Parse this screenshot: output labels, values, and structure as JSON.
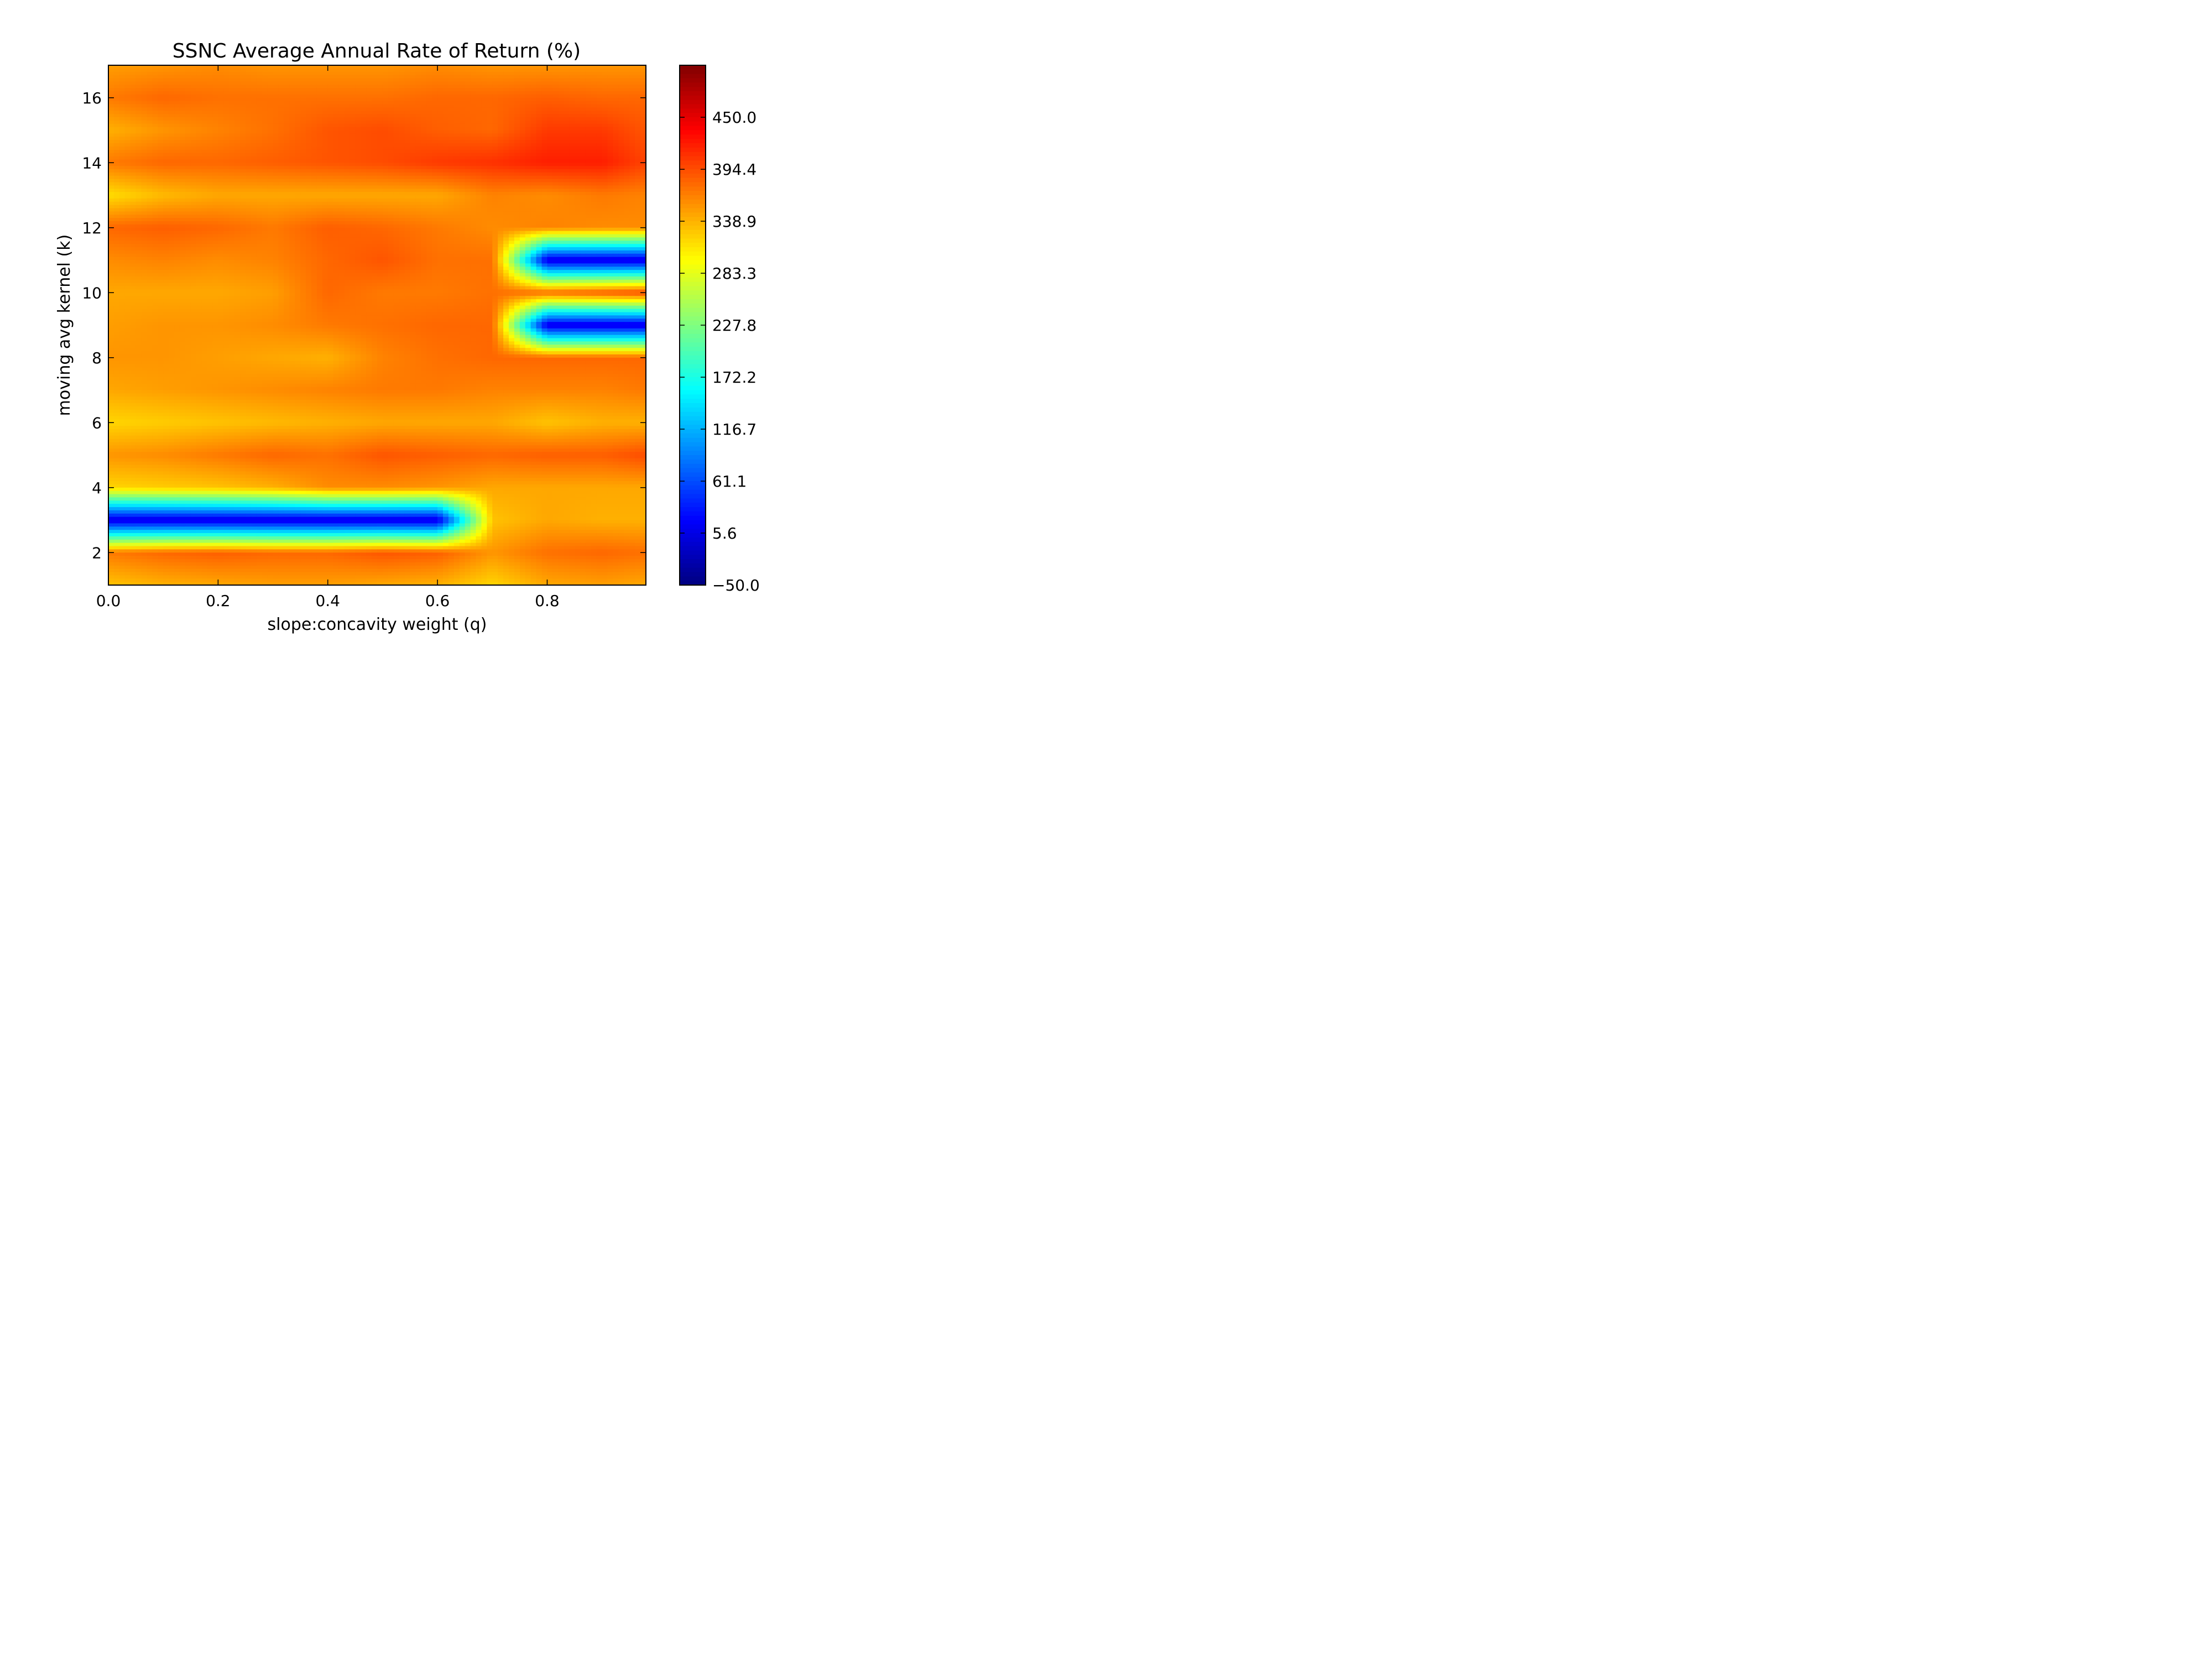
{
  "chart_data": {
    "type": "heatmap",
    "title": "SSNC Average Annual Rate of Return (%)",
    "xlabel": "slope:concavity weight (q)",
    "ylabel": "moving avg kernel (k)",
    "xlim": [
      0.0,
      0.98
    ],
    "ylim": [
      1,
      17
    ],
    "x_ticks": [
      0.0,
      0.2,
      0.4,
      0.6,
      0.8
    ],
    "x_tick_labels": [
      "0.0",
      "0.2",
      "0.4",
      "0.6",
      "0.8"
    ],
    "y_ticks": [
      2,
      4,
      6,
      8,
      10,
      12,
      14,
      16
    ],
    "y_tick_labels": [
      "2",
      "4",
      "6",
      "8",
      "10",
      "12",
      "14",
      "16"
    ],
    "colormap": "jet",
    "colorbar": {
      "vmin": -50.0,
      "vmax": 505.6,
      "ticks": [
        -50.0,
        5.6,
        61.1,
        116.7,
        172.2,
        227.8,
        283.3,
        338.9,
        394.4,
        450.0
      ],
      "tick_labels": [
        "−50.0",
        "5.6",
        "61.1",
        "116.7",
        "172.2",
        "227.8",
        "283.3",
        "338.9",
        "394.4",
        "450.0"
      ]
    },
    "x": [
      0.0,
      0.1,
      0.2,
      0.3,
      0.4,
      0.5,
      0.6,
      0.7,
      0.8,
      0.9,
      0.98
    ],
    "y": [
      1,
      2,
      3,
      4,
      5,
      6,
      7,
      8,
      9,
      10,
      11,
      12,
      13,
      14,
      15,
      16,
      17
    ],
    "z": [
      [
        330,
        340,
        345,
        350,
        350,
        345,
        340,
        320,
        345,
        350,
        345
      ],
      [
        370,
        380,
        385,
        380,
        380,
        390,
        385,
        355,
        375,
        380,
        375
      ],
      [
        0,
        0,
        0,
        0,
        0,
        0,
        0,
        330,
        345,
        340,
        340
      ],
      [
        320,
        325,
        330,
        340,
        360,
        360,
        355,
        345,
        345,
        345,
        345
      ],
      [
        355,
        360,
        370,
        380,
        375,
        390,
        385,
        380,
        385,
        385,
        395
      ],
      [
        320,
        325,
        330,
        335,
        340,
        345,
        345,
        345,
        330,
        340,
        340
      ],
      [
        345,
        350,
        355,
        360,
        365,
        370,
        370,
        365,
        365,
        365,
        370
      ],
      [
        355,
        355,
        350,
        345,
        340,
        365,
        375,
        380,
        380,
        380,
        380
      ],
      [
        350,
        355,
        355,
        360,
        370,
        375,
        380,
        380,
        0,
        0,
        0
      ],
      [
        345,
        345,
        345,
        350,
        380,
        370,
        370,
        375,
        380,
        390,
        400
      ],
      [
        360,
        365,
        360,
        365,
        380,
        390,
        375,
        375,
        0,
        0,
        0
      ],
      [
        380,
        385,
        380,
        370,
        385,
        380,
        370,
        360,
        365,
        360,
        360
      ],
      [
        315,
        335,
        345,
        345,
        345,
        345,
        345,
        365,
        360,
        370,
        365
      ],
      [
        370,
        380,
        380,
        385,
        390,
        395,
        405,
        410,
        420,
        420,
        400
      ],
      [
        340,
        355,
        365,
        375,
        390,
        395,
        385,
        380,
        405,
        405,
        390
      ],
      [
        370,
        380,
        375,
        375,
        375,
        375,
        380,
        380,
        385,
        380,
        380
      ],
      [
        350,
        355,
        360,
        355,
        355,
        355,
        360,
        355,
        355,
        355,
        355
      ]
    ]
  }
}
